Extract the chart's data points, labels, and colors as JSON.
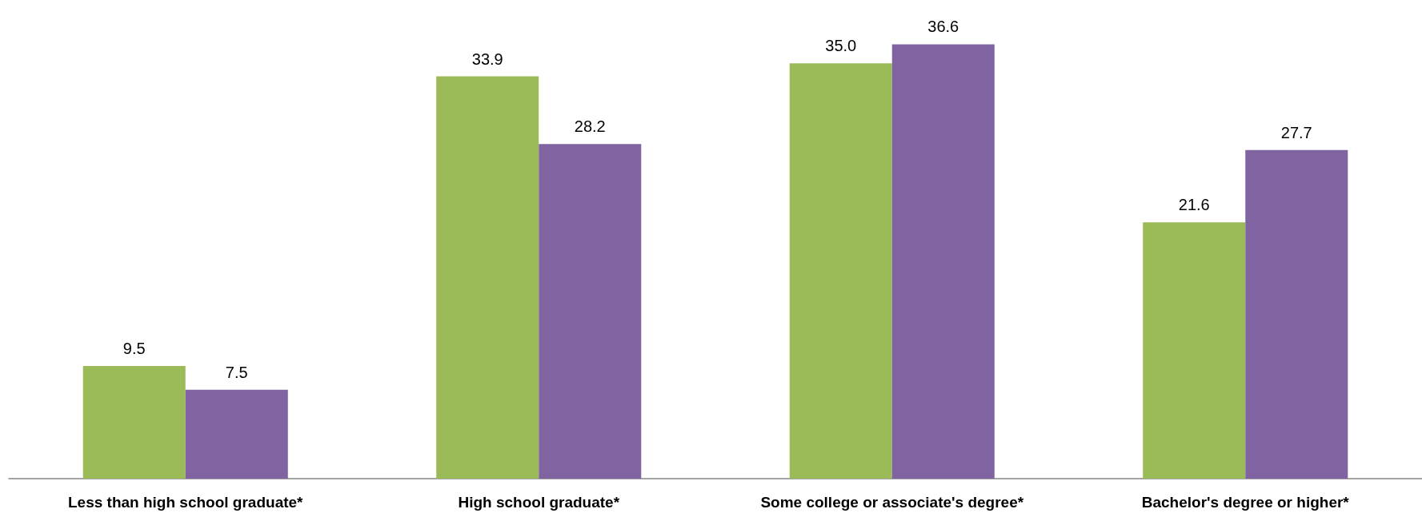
{
  "chart_data": {
    "type": "bar",
    "categories": [
      "Less than high school graduate*",
      "High school graduate*",
      "Some college or associate's degree*",
      "Bachelor's degree or higher*"
    ],
    "series": [
      {
        "color": "#9bbb59",
        "values": [
          9.5,
          33.9,
          35.0,
          21.6
        ],
        "value_labels": [
          "9.5",
          "33.9",
          "35.0",
          "21.6"
        ]
      },
      {
        "color": "#8064a2",
        "values": [
          7.5,
          28.2,
          36.6,
          27.7
        ],
        "value_labels": [
          "7.5",
          "28.2",
          "36.6",
          "27.7"
        ]
      }
    ]
  }
}
